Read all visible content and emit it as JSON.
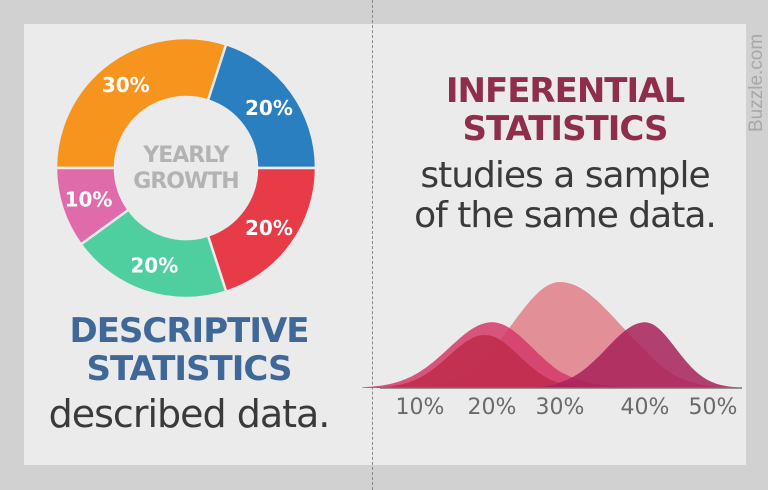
{
  "watermark": "Buzzle.com",
  "left": {
    "title_line1": "DESCRIPTIVE",
    "title_line2": "STATISTICS",
    "subtitle": "described data."
  },
  "right": {
    "title_line1": "INFERENTIAL",
    "title_line2": "STATISTICS",
    "subtitle_line1": "studies a sample",
    "subtitle_line2": "of the same data."
  },
  "chart_data": [
    {
      "type": "pie",
      "variant": "donut",
      "center_label_line1": "YEARLY",
      "center_label_line2": "GROWTH",
      "slices": [
        {
          "label": "30%",
          "value": 30,
          "color": "#f7941e"
        },
        {
          "label": "20%",
          "value": 20,
          "color": "#2a7fc0"
        },
        {
          "label": "20%",
          "value": 20,
          "color": "#e73b47"
        },
        {
          "label": "20%",
          "value": 20,
          "color": "#4fcf9f"
        },
        {
          "label": "10%",
          "value": 10,
          "color": "#e06bab"
        }
      ]
    },
    {
      "type": "area",
      "xticks": [
        "10%",
        "20%",
        "30%",
        "40%",
        "50%"
      ],
      "grid": false,
      "curves": [
        {
          "peak": 30,
          "spread": 7,
          "height": 1.0,
          "color": "#e07f88"
        },
        {
          "peak": 20,
          "spread": 6,
          "height": 0.62,
          "color": "#d43a6a"
        },
        {
          "peak": 19,
          "spread": 5,
          "height": 0.5,
          "color": "#c02c4a"
        },
        {
          "peak": 40,
          "spread": 4.5,
          "height": 0.62,
          "color": "#a82258"
        }
      ]
    }
  ]
}
